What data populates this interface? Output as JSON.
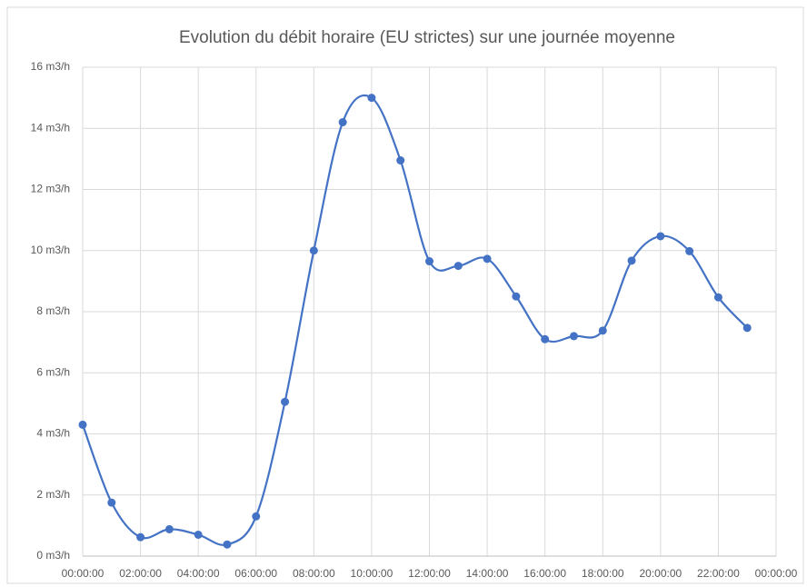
{
  "chart_data": {
    "type": "line",
    "title": "Evolution du débit horaire (EU strictes) sur une journée moyenne",
    "x": [
      0,
      1,
      2,
      3,
      4,
      5,
      6,
      7,
      8,
      9,
      10,
      11,
      12,
      13,
      14,
      15,
      16,
      17,
      18,
      19,
      20,
      21,
      22,
      23
    ],
    "series": [
      {
        "color": "#4472c4",
        "values": [
          4.3,
          1.75,
          0.62,
          0.88,
          0.7,
          0.38,
          1.3,
          5.05,
          10.0,
          14.2,
          15.0,
          12.95,
          9.65,
          9.5,
          9.73,
          8.5,
          7.1,
          7.2,
          7.38,
          9.67,
          10.47,
          9.98,
          8.47,
          7.47
        ]
      }
    ],
    "xlim": [
      0,
      24
    ],
    "xticks": [
      {
        "value": 0,
        "label": "00:00:00"
      },
      {
        "value": 2,
        "label": "02:00:00"
      },
      {
        "value": 4,
        "label": "04:00:00"
      },
      {
        "value": 6,
        "label": "06:00:00"
      },
      {
        "value": 8,
        "label": "08:00:00"
      },
      {
        "value": 10,
        "label": "10:00:00"
      },
      {
        "value": 12,
        "label": "12:00:00"
      },
      {
        "value": 14,
        "label": "14:00:00"
      },
      {
        "value": 16,
        "label": "16:00:00"
      },
      {
        "value": 18,
        "label": "18:00:00"
      },
      {
        "value": 20,
        "label": "20:00:00"
      },
      {
        "value": 22,
        "label": "22:00:00"
      },
      {
        "value": 24,
        "label": "00:00:00"
      }
    ],
    "ylim": [
      0,
      16
    ],
    "yticks": [
      {
        "value": 0,
        "label": "0 m3/h"
      },
      {
        "value": 2,
        "label": "2 m3/h"
      },
      {
        "value": 4,
        "label": "4 m3/h"
      },
      {
        "value": 6,
        "label": "6 m3/h"
      },
      {
        "value": 8,
        "label": "8 m3/h"
      },
      {
        "value": 10,
        "label": "10 m3/h"
      },
      {
        "value": 12,
        "label": "12 m3/h"
      },
      {
        "value": 14,
        "label": "14 m3/h"
      },
      {
        "value": 16,
        "label": "16 m3/h"
      }
    ],
    "grid": true,
    "smooth": true
  }
}
